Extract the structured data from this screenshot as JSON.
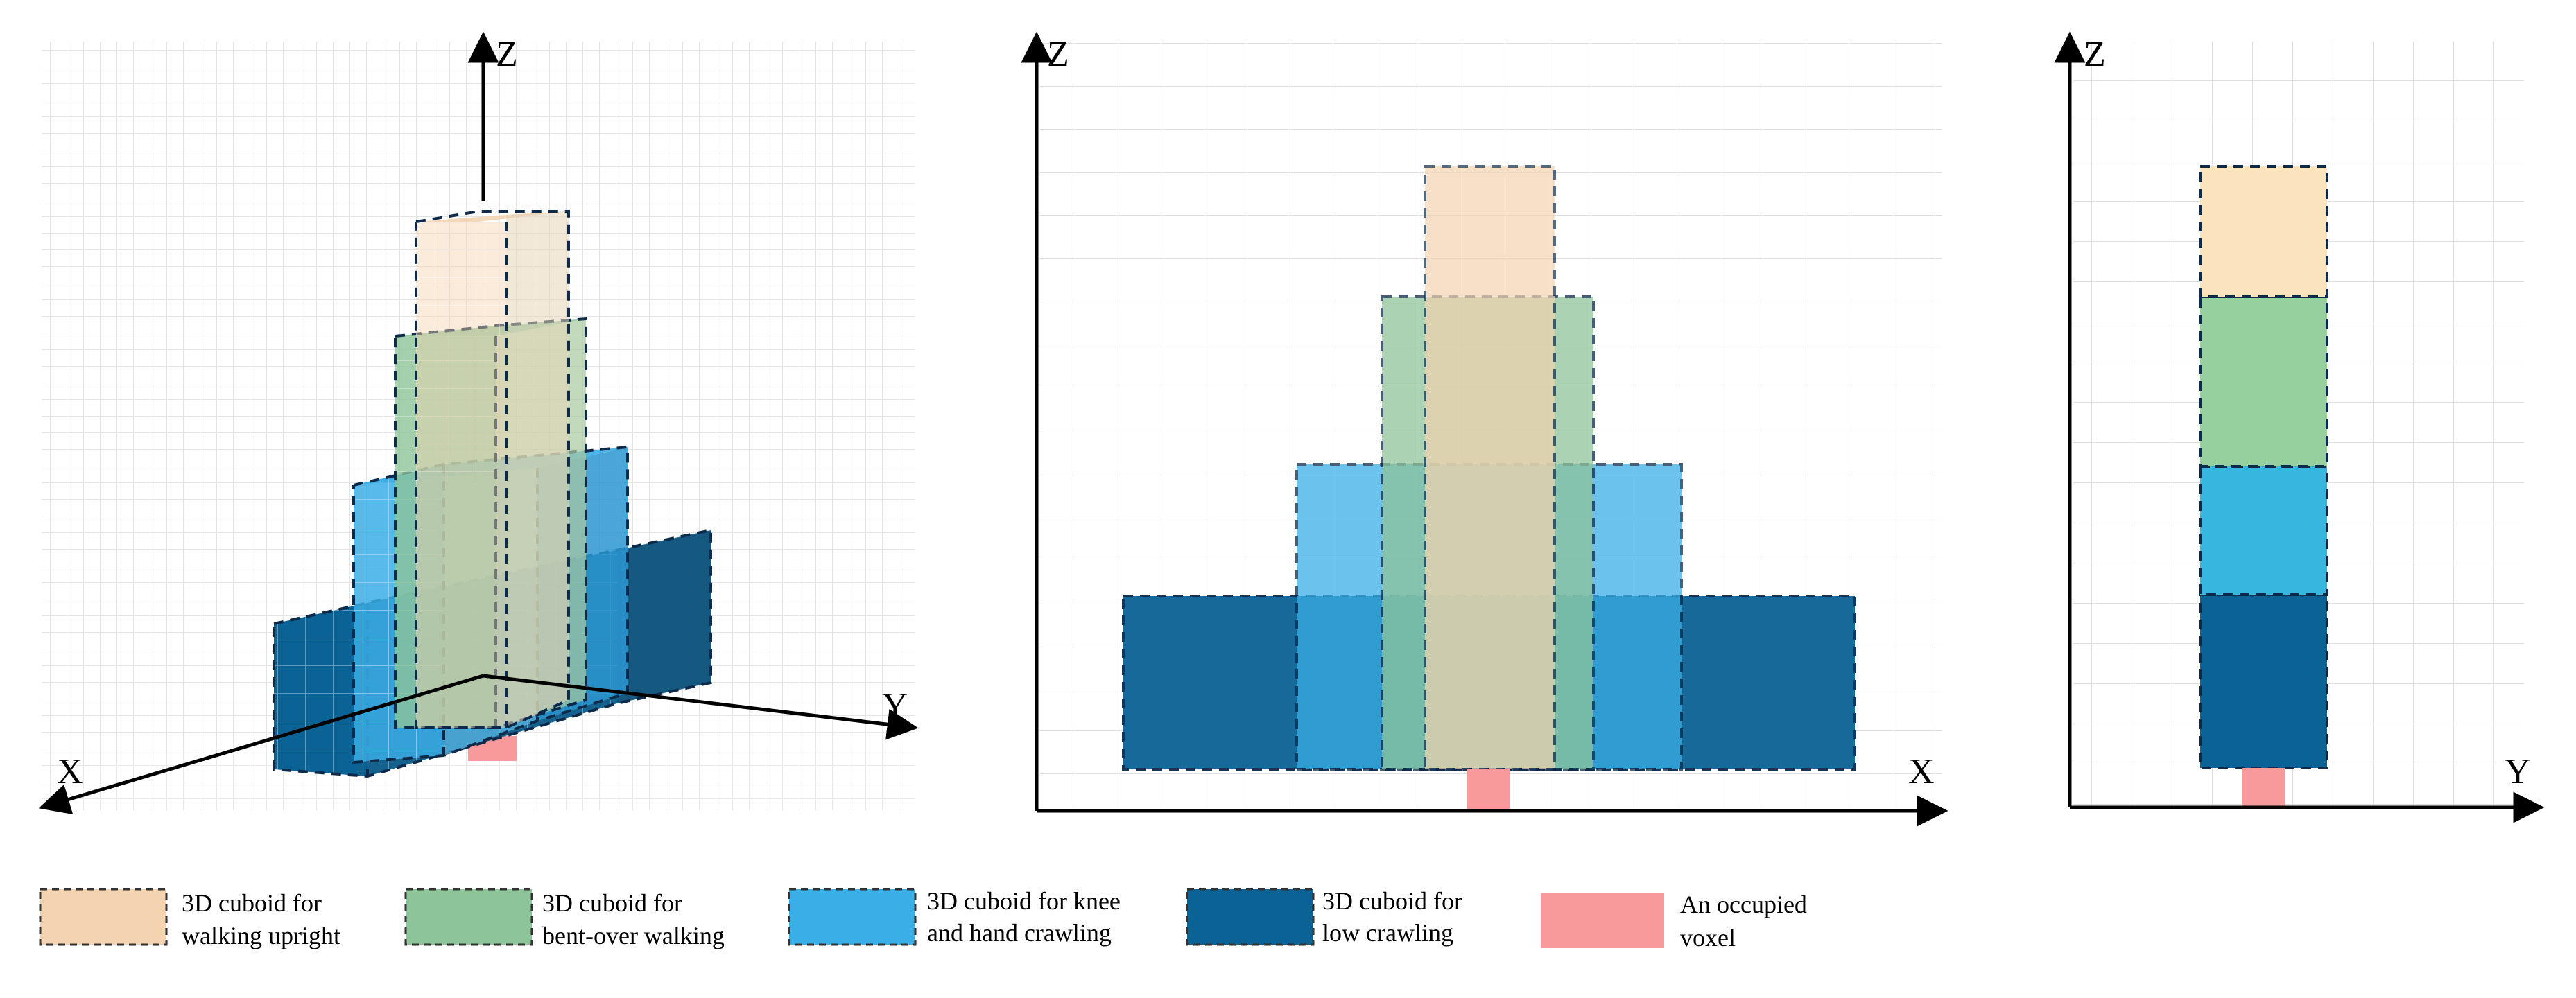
{
  "views": {
    "iso": {
      "x_axis": "X",
      "y_axis": "Y",
      "z_axis": "Z"
    },
    "front": {
      "x_axis": "X",
      "z_axis": "Z"
    },
    "side": {
      "y_axis": "Y",
      "z_axis": "Z"
    }
  },
  "colors": {
    "walking_upright": "#f3d3b0",
    "bent_over": "#8ec49a",
    "knee_hand": "#3aaee6",
    "low_crawling": "#0b6294",
    "occupied_voxel": "#f89a9c",
    "dashed_border": "#0d2a4a",
    "grid": "#dcdcdc"
  },
  "legend": [
    {
      "key": "walking_upright",
      "line1": "3D cuboid for",
      "line2": "walking upright"
    },
    {
      "key": "bent_over",
      "line1": "3D cuboid for",
      "line2": "bent-over walking"
    },
    {
      "key": "knee_hand",
      "line1": "3D cuboid for knee",
      "line2": "and hand crawling"
    },
    {
      "key": "low_crawling",
      "line1": "3D cuboid for",
      "line2": "low crawling"
    },
    {
      "key": "occupied_voxel",
      "line1": "An occupied",
      "line2": "voxel"
    }
  ]
}
